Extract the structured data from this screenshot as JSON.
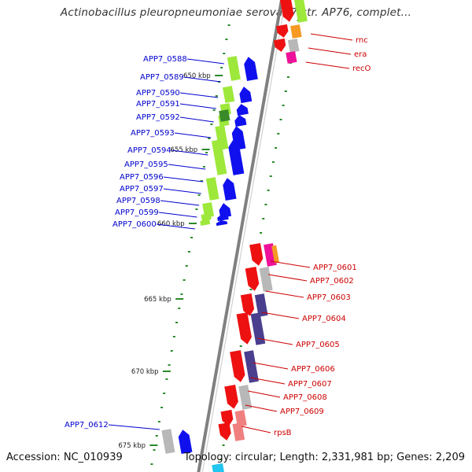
{
  "title": "Actinobacillus pleuropneumoniae serovar 7 str. AP76, complet...",
  "footer": {
    "accession": "Accession: NC_010939",
    "summary": "Topology: circular; Length: 2,331,981 bp; Genes: 2,209"
  },
  "colors": {
    "forward_label": "#0000cc",
    "reverse_label": "#cc0000",
    "cds_forward": "#1010ee",
    "cds_reverse": "#ee1111",
    "cog_green": "#9de83a",
    "cog_gray": "#b8b8b8",
    "cog_purple": "#4a3f8e",
    "cog_orange": "#f59a23",
    "cog_magenta": "#ee1199",
    "cog_pink": "#f08080",
    "gc_skew": "#2a8a2a",
    "backbone": "#808080"
  },
  "kbp_ticks": [
    "650 kbp",
    "655 kbp",
    "660 kbp",
    "665 kbp",
    "670 kbp",
    "675 kbp"
  ],
  "forward_genes": [
    "APP7_0588",
    "APP7_0589",
    "APP7_0590",
    "APP7_0591",
    "APP7_0592",
    "APP7_0593",
    "APP7_0594",
    "APP7_0595",
    "APP7_0596",
    "APP7_0597",
    "APP7_0598",
    "APP7_0599",
    "APP7_0600",
    "APP7_0612"
  ],
  "reverse_genes": [
    "rnc",
    "era",
    "recO",
    "APP7_0601",
    "APP7_0602",
    "APP7_0603",
    "APP7_0604",
    "APP7_0605",
    "APP7_0606",
    "APP7_0607",
    "APP7_0608",
    "APP7_0609",
    "rpsB"
  ]
}
